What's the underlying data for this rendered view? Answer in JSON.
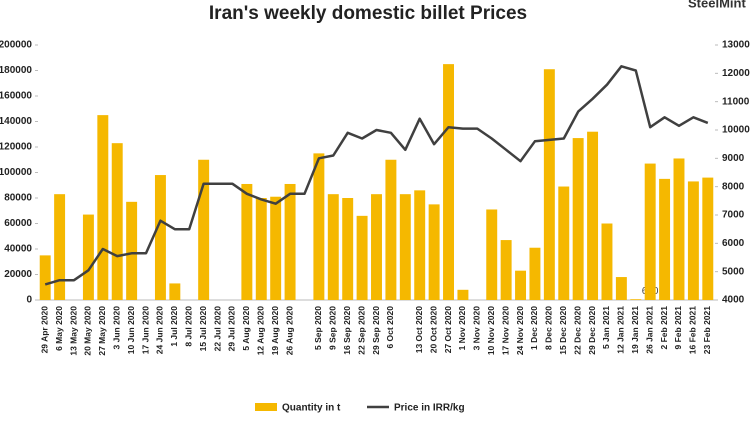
{
  "chart_data": {
    "type": "bar_line",
    "title": "Iran's weekly domestic billet Prices",
    "watermark": "SteelMint",
    "categories": [
      "29 Apr 2020",
      "6 May 2020",
      "13 May 2020",
      "20 May 2020",
      "27 May 2020",
      "3 Jun 2020",
      "10 Jun 2020",
      "17 Jun 2020",
      "24 Jun 2020",
      "1 Jul 2020",
      "8 Jul 2020",
      "15 Jul 2020",
      "22 Jul 2020",
      "29 Jul 2020",
      "5 Aug 2020",
      "12 Aug 2020",
      "19 Aug 2020",
      "26 Aug 2020",
      null,
      "5 Sep 2020",
      "9 Sep 2020",
      "16 Sep 2020",
      "22 Sep 2020",
      "29 Sep 2020",
      "6 Oct 2020",
      null,
      "13 Oct 2020",
      "20 Oct 2020",
      "27 Oct 2020",
      "1 Nov 2020",
      "3 Nov 2020",
      "10 Nov 2020",
      "17 Nov 2020",
      "24 Nov 2020",
      "1 Dec 2020",
      "8 Dec 2020",
      "15 Dec 2020",
      "22 Dec 2020",
      "29 Dec 2020",
      "5 Jan 2021",
      "12 Jan 2021",
      "19 Jan 2021",
      "26 Jan 2021",
      "2 Feb 2021",
      "9 Feb 2021",
      "16 Feb 2021",
      "23 Feb 2021"
    ],
    "series": [
      {
        "name": "Quantity in t",
        "type": "bar",
        "color": "#f5b800",
        "axis": "y",
        "values": [
          35000,
          83000,
          null,
          67000,
          145000,
          123000,
          77000,
          null,
          98000,
          13000,
          null,
          110000,
          null,
          null,
          91000,
          80000,
          81000,
          91000,
          null,
          115000,
          83000,
          80000,
          66000,
          83000,
          110000,
          83000,
          86000,
          75000,
          185000,
          8000,
          null,
          71000,
          47000,
          23000,
          41000,
          181000,
          89000,
          127000,
          132000,
          60000,
          18000,
          600,
          107000,
          95000,
          111000,
          93000,
          96000
        ],
        "value_labels": [
          null,
          null,
          null,
          null,
          null,
          null,
          null,
          null,
          null,
          null,
          null,
          null,
          null,
          null,
          null,
          null,
          null,
          null,
          null,
          null,
          null,
          null,
          null,
          null,
          null,
          null,
          null,
          null,
          null,
          null,
          null,
          null,
          null,
          null,
          null,
          null,
          null,
          null,
          null,
          null,
          null,
          "600",
          null,
          null,
          null,
          null,
          null
        ]
      },
      {
        "name": "Price in IRR/kg",
        "type": "line",
        "color": "#404040",
        "axis": "y2",
        "values": [
          4550,
          4700,
          4700,
          5050,
          5800,
          5550,
          5650,
          5650,
          6800,
          6500,
          6500,
          8100,
          8100,
          8100,
          7750,
          7550,
          7400,
          7750,
          7750,
          9000,
          9100,
          9900,
          9700,
          10000,
          9900,
          9300,
          10400,
          9500,
          10100,
          10050,
          10050,
          9700,
          9300,
          8900,
          9600,
          9650,
          9700,
          10650,
          11100,
          11600,
          12250,
          12100,
          10100,
          10450,
          10150,
          10450,
          10250
        ]
      }
    ],
    "ylim": [
      0,
      200000
    ],
    "yticks": [
      0,
      20000,
      40000,
      60000,
      80000,
      100000,
      120000,
      140000,
      160000,
      180000,
      200000
    ],
    "y2lim": [
      4000,
      13000
    ],
    "y2ticks": [
      4000,
      5000,
      6000,
      7000,
      8000,
      9000,
      10000,
      11000,
      12000,
      13000
    ],
    "legend": "bottom"
  }
}
